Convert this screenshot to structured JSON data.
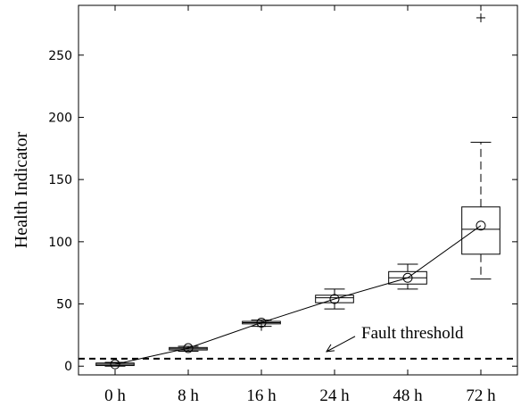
{
  "chart_data": {
    "type": "box",
    "title": "",
    "xlabel": "",
    "ylabel": "Health Indicator",
    "ylim": [
      -7,
      290
    ],
    "yticks": [
      0,
      50,
      100,
      150,
      200,
      250
    ],
    "categories": [
      "0 h",
      "8 h",
      "16 h",
      "24 h",
      "48 h",
      "72 h"
    ],
    "boxes": [
      {
        "category": "0 h",
        "whisker_low": 0,
        "q1": 0.5,
        "median": 1.5,
        "q3": 2.5,
        "whisker_high": 3,
        "mean": 1.5,
        "outliers": []
      },
      {
        "category": "8 h",
        "whisker_low": 12,
        "q1": 13,
        "median": 14,
        "q3": 15,
        "whisker_high": 16,
        "mean": 14.5,
        "outliers": []
      },
      {
        "category": "16 h",
        "whisker_low": 32,
        "q1": 34,
        "median": 35,
        "q3": 36,
        "whisker_high": 37,
        "mean": 35,
        "outliers": [
          32
        ]
      },
      {
        "category": "24 h",
        "whisker_low": 46,
        "q1": 51,
        "median": 55,
        "q3": 57,
        "whisker_high": 62,
        "mean": 54,
        "outliers": []
      },
      {
        "category": "48 h",
        "whisker_low": 62,
        "q1": 66,
        "median": 71,
        "q3": 76,
        "whisker_high": 82,
        "mean": 71,
        "outliers": []
      },
      {
        "category": "72 h",
        "whisker_low": 70,
        "q1": 90,
        "median": 110,
        "q3": 128,
        "whisker_high": 180,
        "mean": 113,
        "outliers": [
          280
        ]
      }
    ],
    "threshold": {
      "value": 6,
      "label": "Fault threshold"
    },
    "grid": false,
    "legend": "none"
  },
  "colors": {
    "ink": "#000000",
    "background": "#ffffff"
  }
}
